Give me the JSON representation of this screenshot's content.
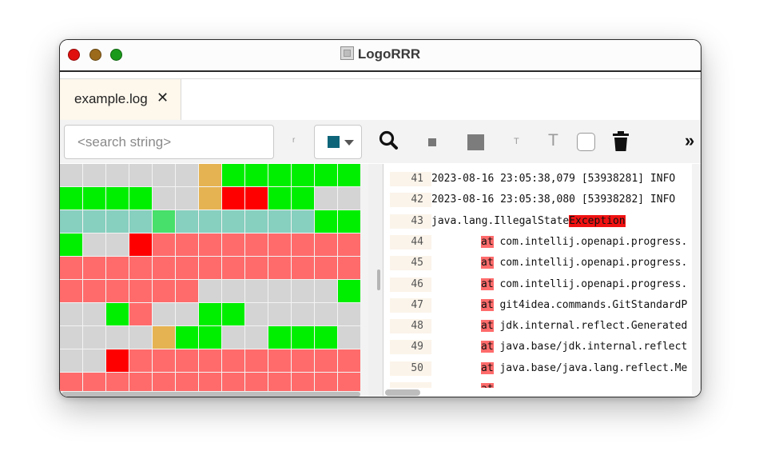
{
  "window": {
    "title": "LogoRRR"
  },
  "tabs": [
    {
      "label": "example.log",
      "close": "✕"
    }
  ],
  "toolbar": {
    "search_placeholder": "<search string>",
    "regex_label": "r",
    "selected_color": "#0e6579",
    "overflow_label": "»",
    "font_small_label": "T",
    "font_large_label": "T"
  },
  "colors": {
    "gray": "#d4d4d4",
    "green": "#00ee00",
    "orange": "#e6b352",
    "red": "#ff0000",
    "salmon": "#ff6b6b",
    "teal": "#87cfbf",
    "lightgreen": "#47e06a",
    "gridline": "#f3f3f3"
  },
  "heatmap_rows": [
    [
      "gray",
      "gray",
      "gray",
      "gray",
      "gray",
      "gray",
      "orange",
      "green",
      "green",
      "green",
      "green",
      "green",
      "green"
    ],
    [
      "green",
      "green",
      "green",
      "green",
      "gray",
      "gray",
      "orange",
      "red",
      "red",
      "green",
      "green",
      "gray",
      "gray"
    ],
    [
      "teal",
      "teal",
      "teal",
      "teal",
      "lightgreen",
      "teal",
      "teal",
      "teal",
      "teal",
      "teal",
      "teal",
      "green",
      "green"
    ],
    [
      "green",
      "gray",
      "gray",
      "red",
      "salmon",
      "salmon",
      "salmon",
      "salmon",
      "salmon",
      "salmon",
      "salmon",
      "salmon",
      "salmon"
    ],
    [
      "salmon",
      "salmon",
      "salmon",
      "salmon",
      "salmon",
      "salmon",
      "salmon",
      "salmon",
      "salmon",
      "salmon",
      "salmon",
      "salmon",
      "salmon"
    ],
    [
      "salmon",
      "salmon",
      "salmon",
      "salmon",
      "salmon",
      "salmon",
      "gray",
      "gray",
      "gray",
      "gray",
      "gray",
      "gray",
      "green"
    ],
    [
      "gray",
      "gray",
      "green",
      "salmon",
      "gray",
      "gray",
      "green",
      "green",
      "gray",
      "gray",
      "gray",
      "gray",
      "gray"
    ],
    [
      "gray",
      "gray",
      "gray",
      "gray",
      "orange",
      "green",
      "green",
      "gray",
      "gray",
      "green",
      "green",
      "green",
      "gray"
    ],
    [
      "gray",
      "gray",
      "red",
      "salmon",
      "salmon",
      "salmon",
      "salmon",
      "salmon",
      "salmon",
      "salmon",
      "salmon",
      "salmon",
      "salmon"
    ],
    [
      "salmon",
      "salmon",
      "salmon",
      "salmon",
      "salmon",
      "salmon",
      "salmon",
      "salmon",
      "salmon",
      "salmon",
      "salmon",
      "salmon",
      "salmon"
    ]
  ],
  "log_lines": [
    {
      "num": "41",
      "prefix": "",
      "text": "2023-08-16 23:05:38,079 [53938281]   INFO",
      "hl": ""
    },
    {
      "num": "42",
      "prefix": "",
      "text": "2023-08-16 23:05:38,080 [53938282]   INFO",
      "hl": ""
    },
    {
      "num": "43",
      "prefix": "",
      "text": "java.lang.IllegalState",
      "hl": "Exception"
    },
    {
      "num": "44",
      "prefix": "at",
      "text": " com.intellij.openapi.progress.",
      "hl": ""
    },
    {
      "num": "45",
      "prefix": "at",
      "text": " com.intellij.openapi.progress.",
      "hl": ""
    },
    {
      "num": "46",
      "prefix": "at",
      "text": " com.intellij.openapi.progress.",
      "hl": ""
    },
    {
      "num": "47",
      "prefix": "at",
      "text": " git4idea.commands.GitStandardP",
      "hl": ""
    },
    {
      "num": "48",
      "prefix": "at",
      "text": " jdk.internal.reflect.Generated",
      "hl": ""
    },
    {
      "num": "49",
      "prefix": "at",
      "text": " java.base/jdk.internal.reflect",
      "hl": ""
    },
    {
      "num": "50",
      "prefix": "at",
      "text": " java.base/java.lang.reflect.Me",
      "hl": ""
    },
    {
      "num": "",
      "prefix": "at",
      "text": "",
      "hl": ""
    }
  ]
}
